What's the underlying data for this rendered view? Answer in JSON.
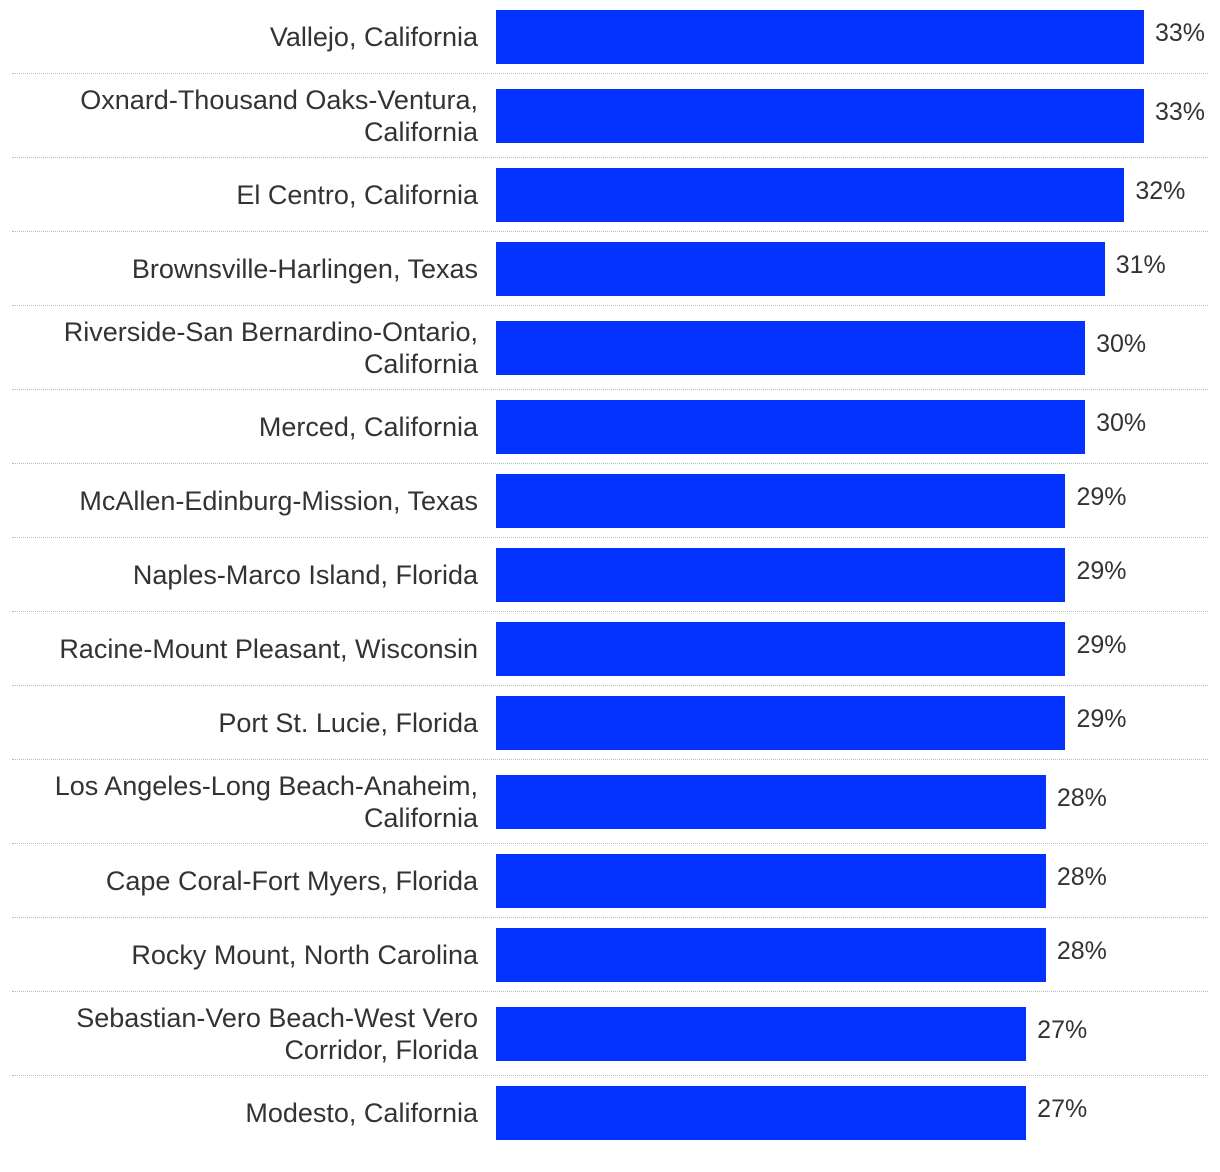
{
  "chart_data": {
    "type": "bar",
    "orientation": "horizontal",
    "title": "",
    "xlabel": "",
    "ylabel": "",
    "xlim": [
      0,
      33
    ],
    "bar_color": "#0433FF",
    "categories": [
      [
        "Vallejo, California"
      ],
      [
        "Oxnard-Thousand Oaks-Ventura,",
        "California"
      ],
      [
        "El Centro, California"
      ],
      [
        "Brownsville-Harlingen, Texas"
      ],
      [
        "Riverside-San Bernardino-Ontario,",
        "California"
      ],
      [
        "Merced, California"
      ],
      [
        "McAllen-Edinburg-Mission, Texas"
      ],
      [
        "Naples-Marco Island, Florida"
      ],
      [
        "Racine-Mount Pleasant, Wisconsin"
      ],
      [
        "Port St. Lucie, Florida"
      ],
      [
        "Los Angeles-Long Beach-Anaheim,",
        "California"
      ],
      [
        "Cape Coral-Fort Myers, Florida"
      ],
      [
        "Rocky Mount, North Carolina"
      ],
      [
        "Sebastian-Vero Beach-West Vero",
        "Corridor, Florida"
      ],
      [
        "Modesto, California"
      ]
    ],
    "values": [
      33,
      33,
      32,
      31,
      30,
      30,
      29,
      29,
      29,
      29,
      28,
      28,
      28,
      27,
      27
    ],
    "value_labels": [
      "33%",
      "33%",
      "32%",
      "31%",
      "30%",
      "30%",
      "29%",
      "29%",
      "29%",
      "29%",
      "28%",
      "28%",
      "28%",
      "27%",
      "27%"
    ]
  }
}
